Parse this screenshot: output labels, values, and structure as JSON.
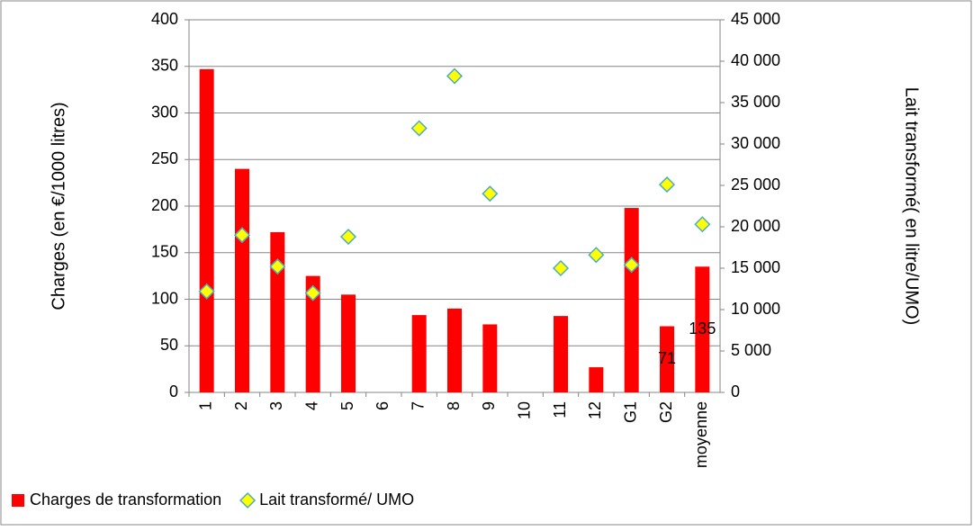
{
  "chart_data": {
    "type": "bar",
    "categories": [
      "1",
      "2",
      "3",
      "4",
      "5",
      "6",
      "7",
      "8",
      "9",
      "10",
      "11",
      "12",
      "G1",
      "G2",
      "moyenne"
    ],
    "series": [
      {
        "name": "Charges de transformation",
        "type": "bar",
        "color": "#ff0000",
        "values": [
          347,
          240,
          172,
          125,
          105,
          null,
          83,
          90,
          73,
          null,
          82,
          27,
          198,
          71,
          135
        ],
        "value_labels": [
          null,
          null,
          null,
          null,
          null,
          null,
          null,
          null,
          null,
          null,
          null,
          null,
          null,
          "71",
          "135"
        ]
      },
      {
        "name": "Lait transformé/ UMO",
        "type": "scatter",
        "axis": "y2",
        "color": "#ffff00",
        "values": [
          12200,
          19000,
          15200,
          12000,
          18800,
          null,
          31900,
          38200,
          24000,
          null,
          15000,
          16600,
          15400,
          25100,
          20300
        ]
      }
    ],
    "ylabel": "Charges (en €/1000 litres)",
    "y2label": "Lait transformé( en litre/UMO)",
    "ylim": [
      0,
      400
    ],
    "yticks": [
      0,
      50,
      100,
      150,
      200,
      250,
      300,
      350,
      400
    ],
    "y2lim": [
      0,
      45000
    ],
    "y2ticks": [
      0,
      {
        "value": 5000,
        "label": "5 000"
      },
      {
        "value": 10000,
        "label": "10 000"
      },
      {
        "value": 15000,
        "label": "15 000"
      },
      {
        "value": 20000,
        "label": "20 000"
      },
      {
        "value": 25000,
        "label": "25 000"
      },
      {
        "value": 30000,
        "label": "30 000"
      },
      {
        "value": 35000,
        "label": "35 000"
      },
      {
        "value": 40000,
        "label": "40 000"
      },
      {
        "value": 45000,
        "label": "45 000"
      }
    ],
    "grid": true,
    "legend": "bottom-left"
  }
}
